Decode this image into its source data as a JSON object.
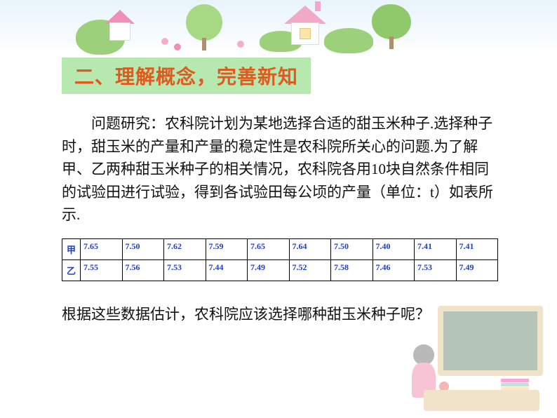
{
  "section_title": "二、理解概念，完善新知",
  "title_bg": "#b6e8b0",
  "title_color": "#e05a1f",
  "paragraph": "问题研究：农科院计划为某地选择合适的甜玉米种子.选择种子时，甜玉米的产量和产量的稳定性是农科院所关心的问题.为了解甲、乙两种甜玉米种子的相关情况，农科院各用10块自然条件相同的试验田进行试验，得到各试验田每公顷的产量（单位：t）如表所示.",
  "table": {
    "row_labels": [
      "甲",
      "乙"
    ],
    "rows": [
      [
        "7.65",
        "7.50",
        "7.62",
        "7.59",
        "7.65",
        "7.64",
        "7.50",
        "7.40",
        "7.41",
        "7.41"
      ],
      [
        "7.55",
        "7.56",
        "7.53",
        "7.44",
        "7.49",
        "7.52",
        "7.58",
        "7.46",
        "7.53",
        "7.49"
      ]
    ],
    "border_color": "#000000",
    "text_color": "#2040c0",
    "font_size": 12
  },
  "question": "根据这些数据估计，农科院应该选择哪种甜玉米种子呢？",
  "body_fontsize": 21,
  "decoration_colors": {
    "sky": "#e8f4fb",
    "bush": "#9dd07a",
    "tree": "#8fc96c",
    "roof": "#f2a9c7",
    "flower": "#f08fb8"
  }
}
